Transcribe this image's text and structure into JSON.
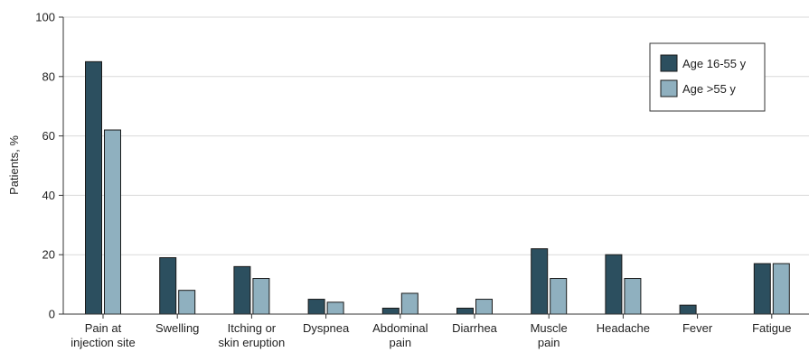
{
  "chart_data": {
    "type": "bar",
    "ylabel": "Patients, %",
    "ylim": [
      0,
      100
    ],
    "yticks": [
      0,
      20,
      40,
      60,
      80,
      100
    ],
    "grid": true,
    "legend_position": "top-right",
    "categories": [
      [
        "Pain at",
        "injection site"
      ],
      [
        "Swelling"
      ],
      [
        "Itching or",
        "skin eruption"
      ],
      [
        "Dyspnea"
      ],
      [
        "Abdominal",
        "pain"
      ],
      [
        "Diarrhea"
      ],
      [
        "Muscle",
        "pain"
      ],
      [
        "Headache"
      ],
      [
        "Fever"
      ],
      [
        "Fatigue"
      ]
    ],
    "series": [
      {
        "name": "Age 16-55 y",
        "color": "#2c4f5f",
        "values": [
          85,
          19,
          16,
          5,
          2,
          2,
          22,
          20,
          3,
          17
        ]
      },
      {
        "name": "Age >55 y",
        "color": "#8fb0bf",
        "values": [
          62,
          8,
          12,
          4,
          7,
          5,
          12,
          12,
          0,
          17
        ]
      }
    ]
  }
}
